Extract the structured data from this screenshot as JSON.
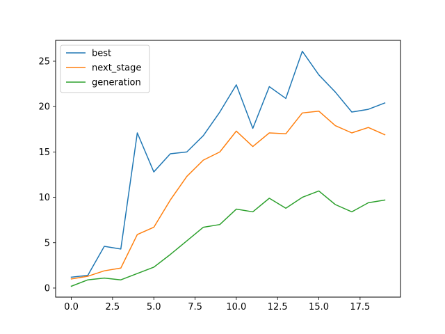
{
  "chart_data": {
    "type": "line",
    "title": "",
    "xlabel": "",
    "ylabel": "",
    "xlim": [
      -0.95,
      19.95
    ],
    "ylim": [
      -1.0,
      27.3
    ],
    "xticks": [
      0.0,
      2.5,
      5.0,
      7.5,
      10.0,
      12.5,
      15.0,
      17.5
    ],
    "xtick_labels": [
      "0.0",
      "2.5",
      "5.0",
      "7.5",
      "10.0",
      "12.5",
      "15.0",
      "17.5"
    ],
    "yticks": [
      0,
      5,
      10,
      15,
      20,
      25
    ],
    "ytick_labels": [
      "0",
      "5",
      "10",
      "15",
      "20",
      "25"
    ],
    "grid": false,
    "legend": {
      "position": "top-left"
    },
    "x": [
      0,
      1,
      2,
      3,
      4,
      5,
      6,
      7,
      8,
      9,
      10,
      11,
      12,
      13,
      14,
      15,
      16,
      17,
      18,
      19
    ],
    "series": [
      {
        "name": "best",
        "color": "#1f77b4",
        "values": [
          1.2,
          1.4,
          4.6,
          4.3,
          17.1,
          12.8,
          14.8,
          15.0,
          16.8,
          19.4,
          22.4,
          17.6,
          22.2,
          20.9,
          26.1,
          23.5,
          21.6,
          19.4,
          19.7,
          20.4
        ]
      },
      {
        "name": "next_stage",
        "color": "#ff7f0e",
        "values": [
          1.0,
          1.3,
          1.9,
          2.2,
          5.9,
          6.7,
          9.7,
          12.3,
          14.1,
          15.0,
          17.3,
          15.6,
          17.1,
          17.0,
          19.3,
          19.5,
          17.9,
          17.1,
          17.7,
          16.9
        ]
      },
      {
        "name": "generation",
        "color": "#2ca02c",
        "values": [
          0.2,
          0.9,
          1.1,
          0.9,
          1.6,
          2.3,
          3.7,
          5.2,
          6.7,
          7.0,
          8.7,
          8.4,
          9.9,
          8.8,
          10.0,
          10.7,
          9.2,
          8.4,
          9.4,
          9.7
        ]
      }
    ]
  }
}
